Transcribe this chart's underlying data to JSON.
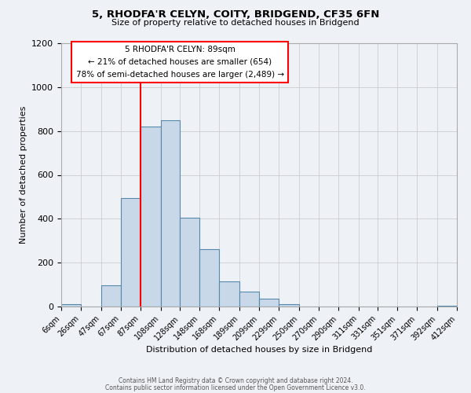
{
  "title": "5, RHODFA'R CELYN, COITY, BRIDGEND, CF35 6FN",
  "subtitle": "Size of property relative to detached houses in Bridgend",
  "xlabel": "Distribution of detached houses by size in Bridgend",
  "ylabel": "Number of detached properties",
  "bin_edges": [
    6,
    26,
    47,
    67,
    87,
    108,
    128,
    148,
    168,
    189,
    209,
    229,
    250,
    270,
    290,
    311,
    331,
    351,
    371,
    392,
    412
  ],
  "bin_counts": [
    10,
    0,
    95,
    495,
    820,
    850,
    405,
    260,
    115,
    68,
    35,
    10,
    0,
    0,
    0,
    0,
    0,
    0,
    0,
    5
  ],
  "bar_facecolor": "#c8d8e8",
  "bar_edgecolor": "#5588aa",
  "grid_color": "#cccccc",
  "background_color": "#eef2f7",
  "vline_x": 87,
  "vline_color": "red",
  "annotation_line1": "5 RHODFA'R CELYN: 89sqm",
  "annotation_line2": "← 21% of detached houses are smaller (654)",
  "annotation_line3": "78% of semi-detached houses are larger (2,489) →",
  "box_edgecolor": "red",
  "ylim": [
    0,
    1200
  ],
  "yticks": [
    0,
    200,
    400,
    600,
    800,
    1000,
    1200
  ],
  "tick_labels": [
    "6sqm",
    "26sqm",
    "47sqm",
    "67sqm",
    "87sqm",
    "108sqm",
    "128sqm",
    "148sqm",
    "168sqm",
    "189sqm",
    "209sqm",
    "229sqm",
    "250sqm",
    "270sqm",
    "290sqm",
    "311sqm",
    "331sqm",
    "351sqm",
    "371sqm",
    "392sqm",
    "412sqm"
  ],
  "footer_line1": "Contains HM Land Registry data © Crown copyright and database right 2024.",
  "footer_line2": "Contains public sector information licensed under the Open Government Licence v3.0."
}
